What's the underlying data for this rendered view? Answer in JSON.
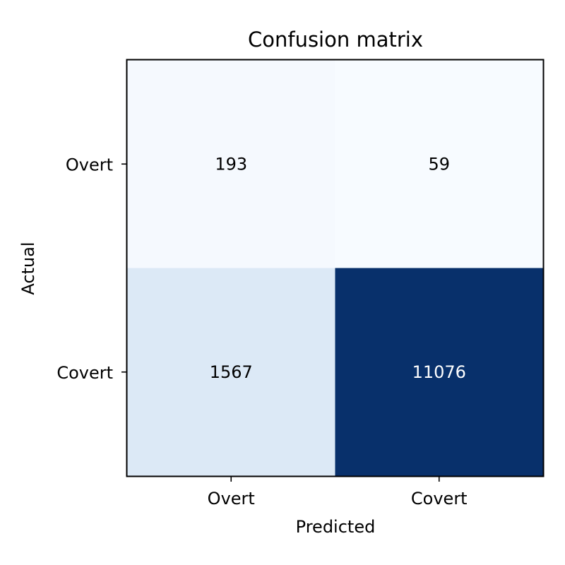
{
  "chart_data": {
    "type": "heatmap",
    "title": "Confusion matrix",
    "xlabel": "Predicted",
    "ylabel": "Actual",
    "x_categories": [
      "Overt",
      "Covert"
    ],
    "y_categories": [
      "Overt",
      "Covert"
    ],
    "values": [
      [
        193,
        59
      ],
      [
        1567,
        11076
      ]
    ],
    "colormap": "Blues",
    "color_low": "#f7fbff",
    "color_high": "#08306b",
    "text_color_light": "#ffffff",
    "text_color_dark": "#000000",
    "grid": false,
    "legend": "none"
  }
}
